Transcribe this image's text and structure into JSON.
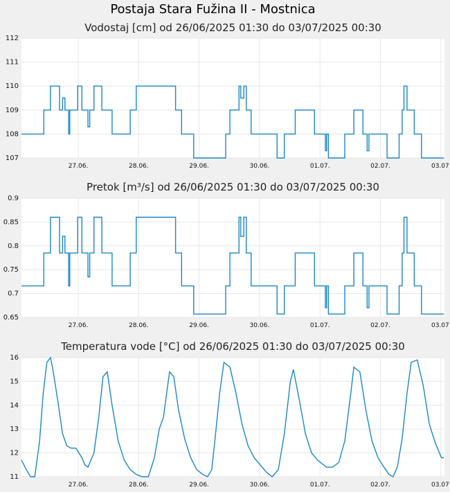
{
  "page_title": "Postaja Stara Fužina II - Mostnica",
  "colors": {
    "background": "#f0f0f0",
    "plot_background": "#ffffff",
    "series": "#1a86c8",
    "grid": "#e6e6e6"
  },
  "chart_data": [
    {
      "type": "line",
      "title": "Vodostaj [cm] od 26/06/2025 01:30 do 03/07/2025 00:30",
      "x_ticks": [
        "27.06.",
        "28.06.",
        "29.06.",
        "30.06.",
        "01.07.",
        "02.07.",
        "03.07"
      ],
      "y_ticks": [
        "112",
        "111",
        "110",
        "109",
        "108",
        "107"
      ],
      "ylim": [
        107,
        112
      ],
      "x_range_days": [
        0,
        7
      ],
      "grid": true,
      "series": [
        {
          "x_days": [
            0,
            0.35,
            0.37,
            0.42,
            0.48,
            0.6,
            0.63,
            0.68,
            0.72,
            0.75,
            0.78,
            0.8,
            0.9,
            0.93,
            0.97,
            1.0,
            1.05,
            1.1,
            1.13,
            1.17,
            1.2,
            1.25,
            1.3,
            1.33,
            1.38,
            1.45,
            1.5,
            1.55,
            1.6,
            1.65,
            1.8,
            1.83,
            1.9,
            2.5,
            2.55,
            2.6,
            2.65,
            2.72,
            2.78,
            2.85,
            3.35,
            3.38,
            3.45,
            3.55,
            3.6,
            3.63,
            3.68,
            3.72,
            3.75,
            3.8,
            3.85,
            4.2,
            4.23,
            4.35,
            4.5,
            4.53,
            4.6,
            4.85,
            4.88,
            5.0,
            5.03,
            5.05,
            5.08,
            5.3,
            5.35,
            5.4,
            5.5,
            5.6,
            5.65,
            5.68,
            5.72,
            5.75,
            6.05,
            6.1,
            6.15,
            6.2,
            6.25,
            6.3,
            6.33,
            6.38,
            6.45,
            6.5,
            6.53,
            6.55,
            6.62,
            6.67,
            6.75,
            6.85,
            6.95,
            6.99
          ],
          "y": [
            108,
            108,
            109,
            109,
            110,
            110,
            109,
            109.5,
            109,
            109,
            108,
            109,
            109,
            110,
            110,
            109,
            109,
            108.3,
            109,
            109,
            110,
            110,
            110,
            109,
            109,
            109,
            108,
            108,
            108,
            108,
            109,
            109,
            110,
            110,
            109,
            109,
            108,
            108,
            108,
            107,
            107,
            108,
            109,
            109,
            110,
            109.5,
            110,
            109,
            109,
            108,
            108,
            108,
            107,
            108,
            108,
            109,
            109,
            108,
            108,
            108,
            107.3,
            108,
            107,
            107,
            108,
            108,
            109,
            109,
            108,
            108,
            107.3,
            108,
            107,
            107,
            107,
            107,
            108,
            109,
            110,
            109,
            109,
            108,
            108,
            108,
            107,
            107,
            107,
            107,
            107,
            107
          ]
        }
      ]
    },
    {
      "type": "line",
      "title": "Pretok [m³/s] od 26/06/2025 01:30 do 03/07/2025 00:30",
      "x_ticks": [
        "27.06.",
        "28.06.",
        "29.06.",
        "30.06.",
        "01.07.",
        "02.07.",
        "03.07"
      ],
      "y_ticks": [
        "0.9",
        "0.85",
        "0.8",
        "0.75",
        "0.7",
        "0.65"
      ],
      "ylim": [
        0.65,
        0.9
      ],
      "x_range_days": [
        0,
        7
      ],
      "grid": true,
      "series": [
        {
          "x_days": [
            0,
            0.35,
            0.37,
            0.42,
            0.48,
            0.6,
            0.63,
            0.68,
            0.72,
            0.75,
            0.78,
            0.8,
            0.9,
            0.93,
            0.97,
            1.0,
            1.05,
            1.1,
            1.13,
            1.17,
            1.2,
            1.25,
            1.3,
            1.33,
            1.38,
            1.45,
            1.5,
            1.55,
            1.6,
            1.65,
            1.8,
            1.83,
            1.9,
            2.5,
            2.55,
            2.6,
            2.65,
            2.72,
            2.78,
            2.85,
            3.35,
            3.38,
            3.45,
            3.55,
            3.6,
            3.63,
            3.68,
            3.72,
            3.75,
            3.8,
            3.85,
            4.2,
            4.23,
            4.35,
            4.5,
            4.53,
            4.6,
            4.85,
            4.88,
            5.0,
            5.03,
            5.05,
            5.08,
            5.3,
            5.35,
            5.4,
            5.5,
            5.6,
            5.65,
            5.68,
            5.72,
            5.75,
            6.05,
            6.1,
            6.15,
            6.2,
            6.25,
            6.3,
            6.33,
            6.38,
            6.45,
            6.5,
            6.53,
            6.55,
            6.62,
            6.67,
            6.75,
            6.85,
            6.95,
            6.99
          ],
          "y": [
            0.716,
            0.716,
            0.785,
            0.785,
            0.86,
            0.86,
            0.785,
            0.82,
            0.785,
            0.785,
            0.716,
            0.785,
            0.785,
            0.86,
            0.86,
            0.785,
            0.785,
            0.735,
            0.785,
            0.785,
            0.86,
            0.86,
            0.86,
            0.785,
            0.785,
            0.785,
            0.716,
            0.716,
            0.716,
            0.716,
            0.785,
            0.785,
            0.86,
            0.86,
            0.785,
            0.785,
            0.716,
            0.716,
            0.716,
            0.657,
            0.657,
            0.716,
            0.785,
            0.785,
            0.86,
            0.82,
            0.86,
            0.785,
            0.785,
            0.716,
            0.716,
            0.716,
            0.657,
            0.716,
            0.716,
            0.785,
            0.785,
            0.716,
            0.716,
            0.716,
            0.67,
            0.716,
            0.657,
            0.657,
            0.716,
            0.716,
            0.785,
            0.785,
            0.716,
            0.716,
            0.67,
            0.716,
            0.657,
            0.657,
            0.657,
            0.657,
            0.716,
            0.785,
            0.86,
            0.785,
            0.785,
            0.716,
            0.716,
            0.716,
            0.657,
            0.657,
            0.657,
            0.657,
            0.657,
            0.657
          ]
        }
      ]
    },
    {
      "type": "line",
      "title": "Temperatura vode [°C] od 26/06/2025 01:30 do 03/07/2025 00:30",
      "x_ticks": [
        "27.06.",
        "28.06.",
        "29.06.",
        "30.06.",
        "01.07.",
        "02.07.",
        "03.07"
      ],
      "y_ticks": [
        "16",
        "15",
        "14",
        "13",
        "12",
        "11"
      ],
      "ylim": [
        11,
        16
      ],
      "x_range_days": [
        0,
        7
      ],
      "grid": true,
      "series": [
        {
          "x_days": [
            0,
            0.08,
            0.15,
            0.22,
            0.3,
            0.36,
            0.42,
            0.48,
            0.52,
            0.6,
            0.68,
            0.75,
            0.82,
            0.9,
            1.0,
            1.05,
            1.1,
            1.2,
            1.28,
            1.35,
            1.42,
            1.5,
            1.6,
            1.7,
            1.8,
            1.9,
            2.0,
            2.1,
            2.2,
            2.28,
            2.35,
            2.45,
            2.52,
            2.6,
            2.7,
            2.8,
            2.9,
            3.0,
            3.08,
            3.15,
            3.2,
            3.28,
            3.35,
            3.45,
            3.55,
            3.65,
            3.75,
            3.85,
            3.95,
            4.05,
            4.15,
            4.25,
            4.35,
            4.45,
            4.5,
            4.6,
            4.7,
            4.8,
            4.9,
            5.0,
            5.05,
            5.15,
            5.25,
            5.35,
            5.45,
            5.5,
            5.6,
            5.7,
            5.8,
            5.9,
            6.0,
            6.08,
            6.15,
            6.22,
            6.3,
            6.38,
            6.45,
            6.55,
            6.65,
            6.75,
            6.85,
            6.95,
            6.99
          ],
          "y": [
            11.7,
            11.3,
            11.0,
            11.0,
            12.5,
            14.5,
            15.8,
            16.0,
            15.5,
            14.2,
            12.8,
            12.3,
            12.2,
            12.2,
            11.8,
            11.5,
            11.4,
            12.0,
            13.5,
            15.2,
            15.4,
            14.0,
            12.5,
            11.7,
            11.3,
            11.1,
            11.0,
            11.0,
            11.8,
            13.0,
            13.5,
            15.4,
            15.2,
            13.8,
            12.6,
            11.8,
            11.3,
            11.1,
            11.0,
            11.3,
            12.5,
            14.5,
            15.8,
            15.6,
            14.5,
            13.2,
            12.3,
            11.8,
            11.5,
            11.2,
            11.0,
            11.3,
            12.8,
            15.0,
            15.5,
            14.2,
            12.8,
            12.0,
            11.7,
            11.5,
            11.4,
            11.4,
            11.6,
            12.5,
            14.5,
            15.6,
            15.4,
            13.8,
            12.5,
            11.8,
            11.4,
            11.1,
            11.0,
            11.4,
            12.6,
            14.5,
            15.8,
            15.9,
            14.8,
            13.2,
            12.4,
            11.8,
            11.8
          ]
        }
      ]
    }
  ]
}
